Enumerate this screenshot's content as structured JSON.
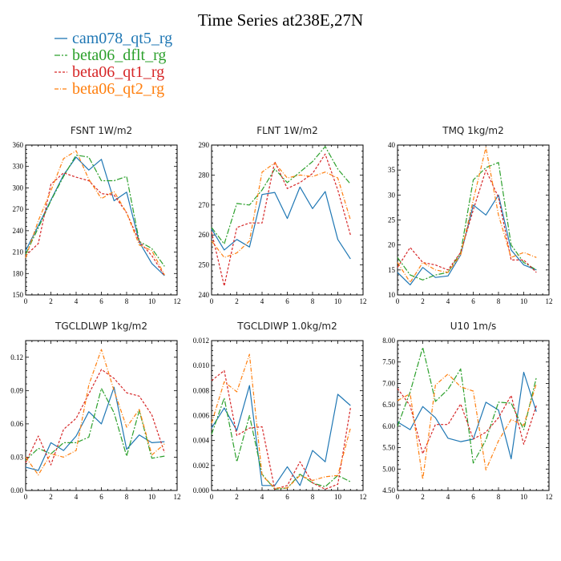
{
  "figure": {
    "title": "Time Series at238E,27N",
    "legend": [
      {
        "name": "cam078_qt5_rg",
        "color": "#1f77b4"
      },
      {
        "name": "beta06_dflt_rg",
        "color": "#2ca02c"
      },
      {
        "name": "beta06_qt1_rg",
        "color": "#d62728"
      },
      {
        "name": "beta06_qt2_rg",
        "color": "#ff7f0e"
      }
    ]
  },
  "chart_data": [
    {
      "type": "line",
      "title": "FSNT   1W/m2",
      "xlim": [
        0,
        12
      ],
      "ylim": [
        150,
        360
      ],
      "xticks": [
        0,
        2,
        4,
        6,
        8,
        10,
        12
      ],
      "yticks": [
        150,
        180,
        210,
        240,
        270,
        300,
        330,
        360
      ],
      "ytick_labels": [
        "150",
        "180",
        "210",
        "240",
        "270",
        "300",
        "330",
        "360"
      ],
      "x": [
        0,
        1,
        2,
        3,
        4,
        5,
        6,
        7,
        8,
        9,
        10,
        11
      ],
      "series": [
        {
          "name": "cam078_qt5_rg",
          "values": [
            212,
            247,
            283,
            318,
            343,
            325,
            340,
            282,
            294,
            224,
            194,
            177
          ]
        },
        {
          "name": "beta06_dflt_rg",
          "values": [
            207,
            244,
            282,
            316,
            346,
            343,
            310,
            310,
            316,
            225,
            215,
            190
          ]
        },
        {
          "name": "beta06_qt1_rg",
          "values": [
            205,
            222,
            305,
            321,
            315,
            310,
            292,
            290,
            265,
            225,
            205,
            177
          ]
        },
        {
          "name": "beta06_qt2_rg",
          "values": [
            202,
            254,
            296,
            341,
            352,
            312,
            285,
            295,
            265,
            220,
            212,
            178
          ]
        }
      ]
    },
    {
      "type": "line",
      "title": "FLNT   1W/m2",
      "xlim": [
        0,
        12
      ],
      "ylim": [
        240,
        290
      ],
      "xticks": [
        0,
        2,
        4,
        6,
        8,
        10,
        12
      ],
      "yticks": [
        240,
        250,
        260,
        270,
        280,
        290
      ],
      "ytick_labels": [
        "240",
        "250",
        "260",
        "270",
        "280",
        "290"
      ],
      "x": [
        0,
        1,
        2,
        3,
        4,
        5,
        6,
        7,
        8,
        9,
        10,
        11
      ],
      "series": [
        {
          "name": "cam078_qt5_rg",
          "values": [
            262,
            255,
            258.5,
            256,
            273.5,
            274.2,
            265.5,
            276,
            268.8,
            274.5,
            258.5,
            252
          ]
        },
        {
          "name": "beta06_dflt_rg",
          "values": [
            262.5,
            257,
            270.5,
            270,
            275,
            282,
            277.5,
            281,
            284.5,
            289.5,
            282,
            277
          ]
        },
        {
          "name": "beta06_qt1_rg",
          "values": [
            261,
            243,
            262.5,
            264,
            264,
            284.5,
            275.5,
            277.5,
            280.5,
            287,
            275,
            260
          ]
        },
        {
          "name": "beta06_qt2_rg",
          "values": [
            258,
            252.5,
            254,
            258,
            281,
            284,
            279,
            280,
            279.5,
            281,
            279,
            265
          ]
        }
      ]
    },
    {
      "type": "line",
      "title": "TMQ   1kg/m2",
      "xlim": [
        0,
        12
      ],
      "ylim": [
        10,
        40
      ],
      "xticks": [
        0,
        2,
        4,
        6,
        8,
        10,
        12
      ],
      "yticks": [
        10,
        15,
        20,
        25,
        30,
        35,
        40
      ],
      "ytick_labels": [
        "10",
        "15",
        "20",
        "25",
        "30",
        "35",
        "40"
      ],
      "x": [
        0,
        1,
        2,
        3,
        4,
        5,
        6,
        7,
        8,
        9,
        10,
        11
      ],
      "series": [
        {
          "name": "cam078_qt5_rg",
          "values": [
            14.5,
            12,
            15.5,
            13.5,
            13.8,
            18,
            28,
            26,
            30,
            19,
            16,
            15
          ]
        },
        {
          "name": "beta06_dflt_rg",
          "values": [
            17.5,
            14,
            13,
            14,
            14.5,
            18.5,
            33,
            35.5,
            36.5,
            20,
            16.5,
            15
          ]
        },
        {
          "name": "beta06_qt1_rg",
          "values": [
            15.5,
            19.5,
            16.5,
            16,
            15,
            18.5,
            27,
            35,
            29.5,
            17,
            17,
            14.5
          ]
        },
        {
          "name": "beta06_qt2_rg",
          "values": [
            16.5,
            12.5,
            16.5,
            15,
            14.5,
            18,
            29,
            39.5,
            26,
            17.5,
            18.5,
            17.5
          ]
        }
      ]
    },
    {
      "type": "line",
      "title": "TGCLDLWP   1kg/m2",
      "xlim": [
        0,
        12
      ],
      "ylim": [
        0,
        0.135
      ],
      "xticks": [
        0,
        2,
        4,
        6,
        8,
        10,
        12
      ],
      "yticks": [
        0,
        0.03,
        0.06,
        0.09,
        0.12
      ],
      "ytick_labels": [
        "0.00",
        "0.03",
        "0.06",
        "0.09",
        "0.12"
      ],
      "x": [
        0,
        1,
        2,
        3,
        4,
        5,
        6,
        7,
        8,
        9,
        10,
        11
      ],
      "series": [
        {
          "name": "cam078_qt5_rg",
          "values": [
            0.021,
            0.018,
            0.043,
            0.036,
            0.049,
            0.071,
            0.06,
            0.093,
            0.037,
            0.05,
            0.043,
            0.044
          ]
        },
        {
          "name": "beta06_dflt_rg",
          "values": [
            0.027,
            0.038,
            0.033,
            0.043,
            0.043,
            0.048,
            0.092,
            0.07,
            0.031,
            0.072,
            0.029,
            0.031
          ]
        },
        {
          "name": "beta06_qt1_rg",
          "values": [
            0.025,
            0.049,
            0.023,
            0.055,
            0.065,
            0.087,
            0.109,
            0.101,
            0.088,
            0.085,
            0.068,
            0.034
          ]
        },
        {
          "name": "beta06_qt2_rg",
          "values": [
            0.03,
            0.014,
            0.033,
            0.03,
            0.036,
            0.095,
            0.127,
            0.09,
            0.057,
            0.073,
            0.032,
            0.042
          ]
        }
      ]
    },
    {
      "type": "line",
      "title": "TGCLDIWP   1.0kg/m2",
      "xlim": [
        0,
        12
      ],
      "ylim": [
        0,
        0.012
      ],
      "xticks": [
        0,
        2,
        4,
        6,
        8,
        10,
        12
      ],
      "yticks": [
        0,
        0.002,
        0.004,
        0.006,
        0.008,
        0.01,
        0.012
      ],
      "ytick_labels": [
        "0.000",
        "0.002",
        "0.004",
        "0.006",
        "0.008",
        "0.010",
        "0.012"
      ],
      "x": [
        0,
        1,
        2,
        3,
        4,
        5,
        6,
        7,
        8,
        9,
        10,
        11
      ],
      "series": [
        {
          "name": "cam078_qt5_rg",
          "values": [
            0.005,
            0.0066,
            0.0048,
            0.0084,
            0.0004,
            0.0004,
            0.0019,
            0.0004,
            0.0032,
            0.0023,
            0.0077,
            0.0068
          ]
        },
        {
          "name": "beta06_dflt_rg",
          "values": [
            0.0045,
            0.0074,
            0.0023,
            0.006,
            0.0013,
            0.0001,
            0.0002,
            0.0013,
            0.0006,
            0.0003,
            0.0012,
            0.0007
          ]
        },
        {
          "name": "beta06_qt1_rg",
          "values": [
            0.0088,
            0.0096,
            0.0044,
            0.005,
            0.0051,
            0.0001,
            0.0004,
            0.0023,
            0.0006,
            0.0001,
            0.0005,
            0.0066
          ]
        },
        {
          "name": "beta06_qt2_rg",
          "values": [
            0.0054,
            0.0087,
            0.0079,
            0.0109,
            0.0012,
            0.0002,
            0.0002,
            0.0012,
            0.0008,
            0.0011,
            0.0012,
            0.005
          ]
        }
      ]
    },
    {
      "type": "line",
      "title": "U10   1m/s",
      "xlim": [
        0,
        12
      ],
      "ylim": [
        4.5,
        8.0
      ],
      "xticks": [
        0,
        2,
        4,
        6,
        8,
        10,
        12
      ],
      "yticks": [
        4.5,
        5.0,
        5.5,
        6.0,
        6.5,
        7.0,
        7.5,
        8.0
      ],
      "ytick_labels": [
        "4.50",
        "5.00",
        "5.50",
        "6.00",
        "6.50",
        "7.00",
        "7.50",
        "8.00"
      ],
      "x": [
        0,
        1,
        2,
        3,
        4,
        5,
        6,
        7,
        8,
        9,
        10,
        11
      ],
      "series": [
        {
          "name": "cam078_qt5_rg",
          "values": [
            6.1,
            5.92,
            6.46,
            6.2,
            5.72,
            5.64,
            5.7,
            6.56,
            6.38,
            5.24,
            7.26,
            6.34
          ]
        },
        {
          "name": "beta06_dflt_rg",
          "values": [
            6.0,
            6.8,
            7.84,
            6.58,
            6.86,
            7.34,
            5.14,
            5.68,
            6.56,
            6.54,
            5.92,
            7.14
          ]
        },
        {
          "name": "beta06_qt1_rg",
          "values": [
            6.88,
            6.48,
            5.36,
            6.04,
            6.04,
            6.52,
            5.7,
            5.86,
            6.2,
            6.72,
            5.58,
            6.48
          ]
        },
        {
          "name": "beta06_qt2_rg",
          "values": [
            6.6,
            6.76,
            4.76,
            6.96,
            7.22,
            6.92,
            6.82,
            4.98,
            5.66,
            6.16,
            6.02,
            7.0
          ]
        }
      ]
    }
  ]
}
